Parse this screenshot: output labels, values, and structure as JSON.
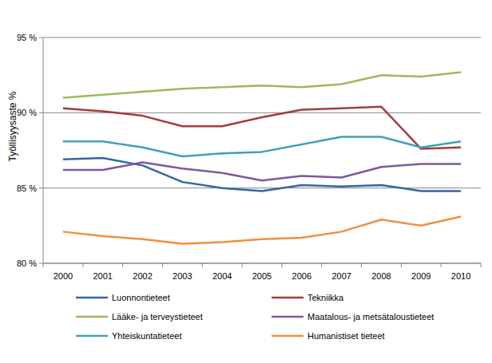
{
  "chart_data": {
    "type": "line",
    "y_label": "Työllisyysaste %",
    "categories": [
      "2000",
      "2001",
      "2002",
      "2003",
      "2004",
      "2005",
      "2006",
      "2007",
      "2008",
      "2009",
      "2010"
    ],
    "ylim": [
      80,
      95
    ],
    "yticks": [
      {
        "value": 80,
        "label": "80 %"
      },
      {
        "value": 85,
        "label": "85 %"
      },
      {
        "value": 90,
        "label": "90 %"
      },
      {
        "value": 95,
        "label": "95 %"
      }
    ],
    "grid": true,
    "legend": "bottom",
    "series": [
      {
        "name": "Luonnontieteet",
        "color": "#3466a5",
        "values": [
          86.9,
          87.0,
          86.5,
          85.4,
          85.0,
          84.8,
          85.2,
          85.1,
          85.2,
          84.8,
          84.8
        ]
      },
      {
        "name": "Tekniikka",
        "color": "#a53c3a",
        "values": [
          90.3,
          90.1,
          89.8,
          89.1,
          89.1,
          89.7,
          90.2,
          90.3,
          90.4,
          87.6,
          87.7
        ]
      },
      {
        "name": "Lääke- ja terveystieteet",
        "color": "#9bbb59",
        "values": [
          91.0,
          91.2,
          91.4,
          91.6,
          91.7,
          91.8,
          91.7,
          91.9,
          92.5,
          92.4,
          92.7
        ]
      },
      {
        "name": "Maatalous- ja metsätaloustieteet",
        "color": "#7b5a9c",
        "values": [
          86.2,
          86.2,
          86.7,
          86.3,
          86.0,
          85.5,
          85.8,
          85.7,
          86.4,
          86.6,
          86.6
        ]
      },
      {
        "name": "Yhteiskuntatieteet",
        "color": "#40a0b8",
        "values": [
          88.1,
          88.1,
          87.7,
          87.1,
          87.3,
          87.4,
          87.9,
          88.4,
          88.4,
          87.7,
          88.1
        ]
      },
      {
        "name": "Humanistiset tieteet",
        "color": "#f08f40",
        "values": [
          82.1,
          81.8,
          81.6,
          81.3,
          81.4,
          81.6,
          81.7,
          82.1,
          82.9,
          82.5,
          83.1
        ]
      }
    ]
  }
}
